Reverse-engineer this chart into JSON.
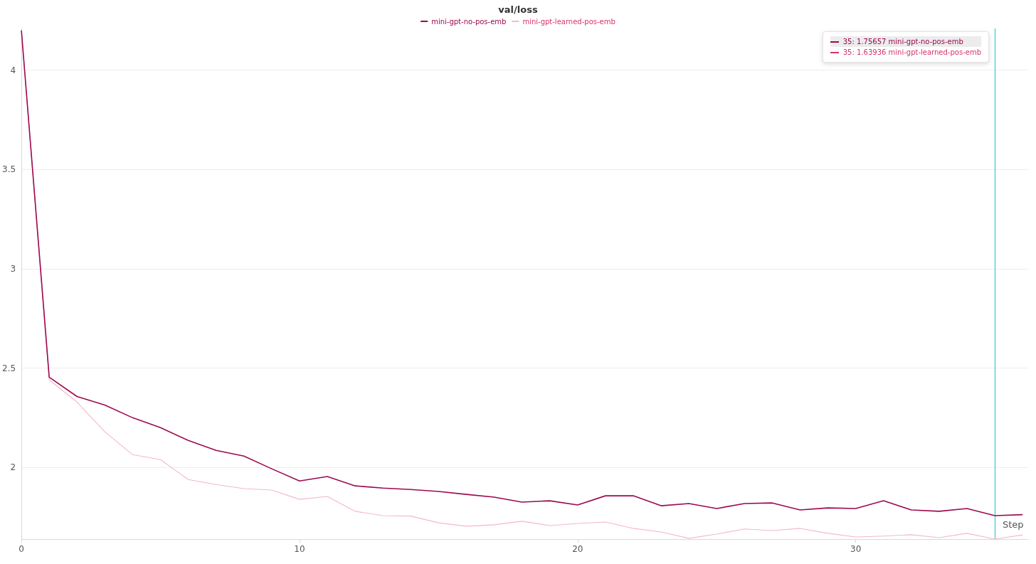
{
  "chart_data": {
    "type": "line",
    "title": "val/loss",
    "xlabel": "Step",
    "x": [
      0,
      1,
      2,
      3,
      4,
      5,
      6,
      7,
      8,
      9,
      10,
      11,
      12,
      13,
      14,
      15,
      16,
      17,
      18,
      19,
      20,
      21,
      22,
      23,
      24,
      25,
      26,
      27,
      28,
      29,
      30,
      31,
      32,
      33,
      34,
      35,
      36
    ],
    "series": [
      {
        "name": "mini-gpt-no-pos-emb",
        "color": "#9b0a4f",
        "values": [
          4.2,
          2.454,
          2.357,
          2.314,
          2.25,
          2.2,
          2.136,
          2.086,
          2.057,
          1.993,
          1.932,
          1.954,
          1.907,
          1.896,
          1.889,
          1.879,
          1.864,
          1.85,
          1.825,
          1.832,
          1.811,
          1.857,
          1.857,
          1.807,
          1.818,
          1.793,
          1.818,
          1.821,
          1.786,
          1.796,
          1.793,
          1.832,
          1.786,
          1.779,
          1.793,
          1.757,
          1.762
        ]
      },
      {
        "name": "mini-gpt-learned-pos-emb",
        "color": "#f4b8cb",
        "values": [
          4.2,
          2.44,
          2.329,
          2.179,
          2.064,
          2.039,
          1.939,
          1.914,
          1.893,
          1.886,
          1.839,
          1.854,
          1.779,
          1.757,
          1.755,
          1.721,
          1.704,
          1.711,
          1.729,
          1.707,
          1.718,
          1.725,
          1.693,
          1.675,
          1.643,
          1.664,
          1.69,
          1.682,
          1.693,
          1.668,
          1.65,
          1.654,
          1.661,
          1.646,
          1.668,
          1.639,
          1.66
        ]
      }
    ],
    "xlim": [
      0,
      36.2
    ],
    "xticks": [
      0,
      10,
      20,
      30
    ],
    "ylim": [
      1.639,
      4.21
    ],
    "yticks": [
      2,
      2.5,
      3,
      3.5,
      4
    ],
    "grid": "y",
    "legend": "top",
    "marker": "none",
    "line_style": "solid",
    "ref_lines": [
      {
        "axis": "x",
        "value": 35,
        "color": "#38c7d4"
      }
    ],
    "annotations": [
      "35:  1.75657 mini-gpt-no-pos-emb",
      "35:  1.63936 mini-gpt-learned-pos-emb"
    ]
  }
}
